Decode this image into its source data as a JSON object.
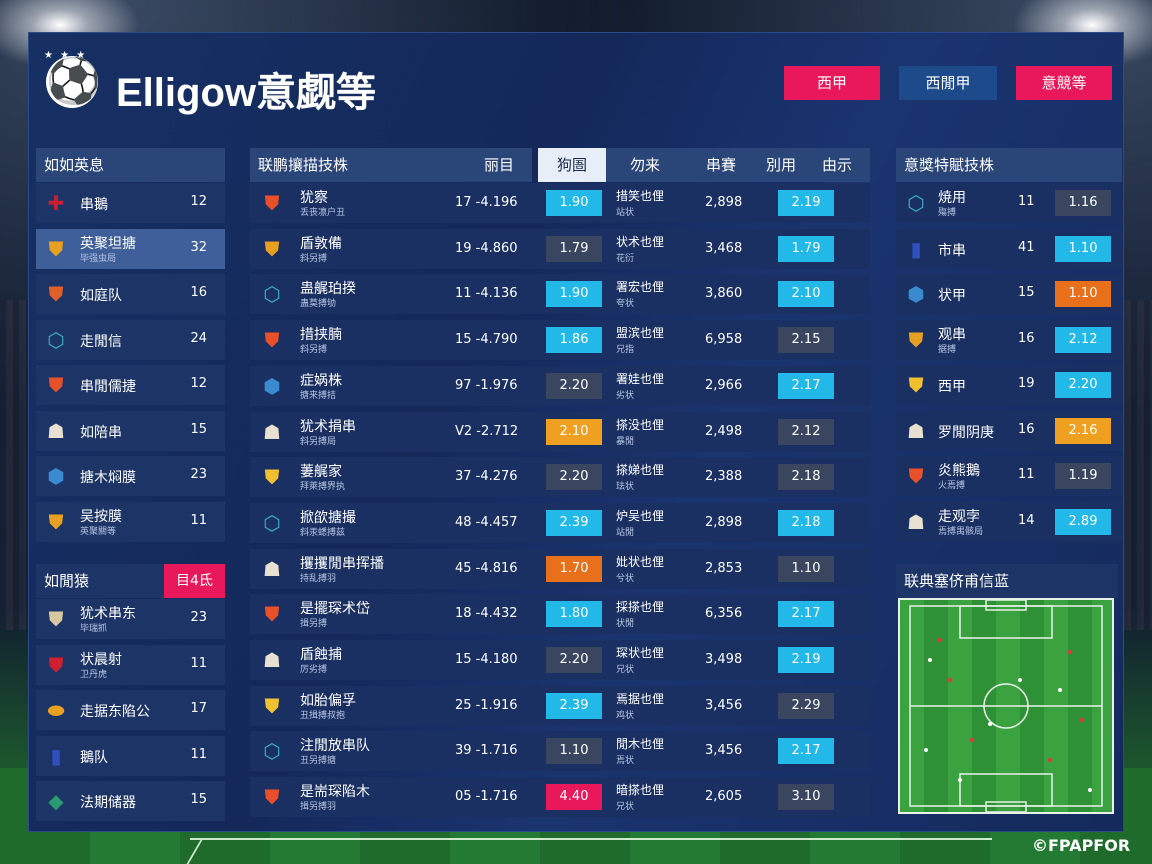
{
  "header": {
    "stars": "★ ★ ★",
    "title": "Elligow意觑等",
    "buttons": [
      {
        "label": "西甲",
        "color": "#e8185a"
      },
      {
        "label": "西閒甲",
        "color": "#1d4a8a"
      },
      {
        "label": "意競等",
        "color": "#e8185a"
      }
    ]
  },
  "left": {
    "title1": "如如英息",
    "teams": [
      {
        "icon": "flag-icon",
        "glyph": "✚",
        "color": "#c8202f",
        "name": "串鵝",
        "sub": "",
        "value": "12"
      },
      {
        "icon": "shield-icon",
        "glyph": "⛊",
        "color": "#e8a020",
        "name": "英聚坦搪",
        "sub": "毕强虫局",
        "value": "32",
        "active": true
      },
      {
        "icon": "shield-icon",
        "glyph": "⛊",
        "color": "#e0602a",
        "name": "如庭队",
        "sub": "",
        "value": "16"
      },
      {
        "icon": "badge-icon",
        "glyph": "⬡",
        "color": "#3ab0c8",
        "name": "走閒信",
        "sub": "",
        "value": "24"
      },
      {
        "icon": "shield-icon",
        "glyph": "⛊",
        "color": "#e8502a",
        "name": "串閒儒捷",
        "sub": "",
        "value": "12"
      },
      {
        "icon": "player-icon",
        "glyph": "☗",
        "color": "#e8e0d0",
        "name": "如陪串",
        "sub": "",
        "value": "15"
      },
      {
        "icon": "badge-icon",
        "glyph": "⬢",
        "color": "#3a8ad0",
        "name": "搪木焖膜",
        "sub": "",
        "value": "23"
      },
      {
        "icon": "shield-icon",
        "glyph": "⛊",
        "color": "#e8a020",
        "name": "吴按膜",
        "sub": "英聚關等",
        "value": "11"
      }
    ],
    "title2": "如閒猿",
    "title2_badge": "目4氐",
    "teams2": [
      {
        "icon": "shield-icon",
        "glyph": "⛊",
        "color": "#d8c8a0",
        "name": "犹术串东",
        "sub": "毕瑞抓",
        "value": "23"
      },
      {
        "icon": "shield-icon",
        "glyph": "⛊",
        "color": "#d02030",
        "name": "状晨射",
        "sub": "卫丹虎",
        "value": "11"
      },
      {
        "icon": "badge-icon",
        "glyph": "⬬",
        "color": "#e8a020",
        "name": "走据东陷公",
        "sub": "",
        "value": "17"
      },
      {
        "icon": "flag-icon",
        "glyph": "▮",
        "color": "#3050c0",
        "name": "鵝队",
        "sub": "",
        "value": "11"
      },
      {
        "icon": "badge-icon",
        "glyph": "◆",
        "color": "#2a9a70",
        "name": "法期储器",
        "sub": "",
        "value": "15"
      }
    ]
  },
  "middle": {
    "headers": [
      "联鹏攘描技株",
      "丽目",
      "狗圄",
      "勿来",
      "串賽",
      "別用",
      "由示"
    ],
    "rows": [
      {
        "icon": "shield-icon",
        "glyph": "⛊",
        "color": "#e8502a",
        "name": "犹察",
        "sub": "丢丧凛户丑",
        "score": "17 -4.196",
        "b1": "1.90",
        "b1c": "#22b8e8",
        "st": "措笑也俚",
        "st2": "站状",
        "num": "2,898",
        "one": "1",
        "b2": "2.19",
        "b2c": "#22b8e8"
      },
      {
        "icon": "shield-icon",
        "glyph": "⛊",
        "color": "#e8a020",
        "name": "盾敦備",
        "sub": "斜另搏",
        "score": "19 -4.860",
        "b1": "1.79",
        "b1c": "#3a4660",
        "st": "状术也俚",
        "st2": "花衍",
        "num": "3,468",
        "one": "1",
        "b2": "1.79",
        "b2c": "#22b8e8"
      },
      {
        "icon": "badge-icon",
        "glyph": "⬡",
        "color": "#3ab0c8",
        "name": "蛊艉珀揆",
        "sub": "蛊莫搏劬",
        "score": "11 -4.136",
        "b1": "1.90",
        "b1c": "#22b8e8",
        "st": "署宏也俚",
        "st2": "夸状",
        "num": "3,860",
        "one": "1",
        "b2": "2.10",
        "b2c": "#22b8e8"
      },
      {
        "icon": "shield-icon",
        "glyph": "⛊",
        "color": "#e8502a",
        "name": "措挟腩",
        "sub": "斜另搏",
        "score": "15 -4.790",
        "b1": "1.86",
        "b1c": "#22b8e8",
        "st": "盟滨也俚",
        "st2": "兄指",
        "num": "6,958",
        "one": "",
        "b2": "2.15",
        "b2c": "#3a4660"
      },
      {
        "icon": "badge-icon",
        "glyph": "⬢",
        "color": "#3a8ad0",
        "name": "症娲株",
        "sub": "搪来搏拮",
        "score": "97 -1.976",
        "b1": "2.20",
        "b1c": "#3a4660",
        "st": "署娃也俚",
        "st2": "劣状",
        "num": "2,966",
        "one": "1",
        "b2": "2.17",
        "b2c": "#22b8e8"
      },
      {
        "icon": "player-icon",
        "glyph": "☗",
        "color": "#e8e0d0",
        "name": "犹术捐串",
        "sub": "斜另搏局",
        "score": "V2 -2.712",
        "b1": "2.10",
        "b1c": "#f0a020",
        "st": "搽没也俚",
        "st2": "暴閒",
        "num": "2,498",
        "one": "",
        "b2": "2.12",
        "b2c": "#3a4660"
      },
      {
        "icon": "shield-icon",
        "glyph": "⛊",
        "color": "#f0c030",
        "name": "萋艉家",
        "sub": "拜萊搏界执",
        "score": "37 -4.276",
        "b1": "2.20",
        "b1c": "#3a4660",
        "st": "搽娣也俚",
        "st2": "珐状",
        "num": "2,388",
        "one": "",
        "b2": "2.18",
        "b2c": "#3a4660"
      },
      {
        "icon": "badge-icon",
        "glyph": "⬡",
        "color": "#3ab0c8",
        "name": "掀欿搪撮",
        "sub": "斜汞蟋搏兹",
        "score": "48 -4.457",
        "b1": "2.39",
        "b1c": "#22b8e8",
        "st": "炉吴也俚",
        "st2": "站閒",
        "num": "2,898",
        "one": "",
        "b2": "2.18",
        "b2c": "#22b8e8"
      },
      {
        "icon": "player-icon",
        "glyph": "☗",
        "color": "#e8e0d0",
        "name": "攫攫閒串挥播",
        "sub": "持乱搏羽",
        "score": "45 -4.816",
        "b1": "1.70",
        "b1c": "#e8701a",
        "st": "妣状也俚",
        "st2": "兮状",
        "num": "2,853",
        "one": "",
        "b2": "1.10",
        "b2c": "#3a4660"
      },
      {
        "icon": "shield-icon",
        "glyph": "⛊",
        "color": "#e8502a",
        "name": "是擺琛术岱",
        "sub": "揖另搏",
        "score": "18 -4.432",
        "b1": "1.80",
        "b1c": "#22b8e8",
        "st": "採搽也俚",
        "st2": "状閒",
        "num": "6,356",
        "one": "",
        "b2": "2.17",
        "b2c": "#22b8e8"
      },
      {
        "icon": "player-icon",
        "glyph": "☗",
        "color": "#e8e0d0",
        "name": "盾蝕捕",
        "sub": "厉劣搏",
        "score": "15 -4.180",
        "b1": "2.20",
        "b1c": "#3a4660",
        "st": "琛状也俚",
        "st2": "兄状",
        "num": "3,498",
        "one": "",
        "b2": "2.19",
        "b2c": "#22b8e8"
      },
      {
        "icon": "shield-icon",
        "glyph": "⛊",
        "color": "#f0c030",
        "name": "如胎偏孚",
        "sub": "丑揖搏叔抱",
        "score": "25 -1.916",
        "b1": "2.39",
        "b1c": "#22b8e8",
        "st": "焉据也俚",
        "st2": "鸡状",
        "num": "3,456",
        "one": "1",
        "b2": "2.29",
        "b2c": "#3a4660"
      },
      {
        "icon": "badge-icon",
        "glyph": "⬡",
        "color": "#3ab0c8",
        "name": "注閒放串队",
        "sub": "丑另搏搪",
        "score": "39 -1.716",
        "b1": "1.10",
        "b1c": "#3a4660",
        "st": "閒木也俚",
        "st2": "焉状",
        "num": "3,456",
        "one": "",
        "b2": "2.17",
        "b2c": "#22b8e8"
      },
      {
        "icon": "shield-icon",
        "glyph": "⛊",
        "color": "#e8502a",
        "name": "是耑琛陷木",
        "sub": "揖另搏羽",
        "score": "05 -1.716",
        "b1": "4.40",
        "b1c": "#e8185a",
        "st": "暗搽也俚",
        "st2": "兄状",
        "num": "2,605",
        "one": "",
        "b2": "3.10",
        "b2c": "#3a4660"
      }
    ]
  },
  "right": {
    "title": "意獎特賦技株",
    "teams": [
      {
        "icon": "badge-icon",
        "glyph": "⬡",
        "color": "#3ab0c8",
        "name": "焼用",
        "sub": "殤搏",
        "value": "11",
        "b": "1.16",
        "bc": "#3a4660"
      },
      {
        "icon": "flag-icon",
        "glyph": "▮",
        "color": "#3050c0",
        "name": "市串",
        "sub": "",
        "value": "41",
        "b": "1.10",
        "bc": "#22b8e8"
      },
      {
        "icon": "badge-icon",
        "glyph": "⬢",
        "color": "#3a8ad0",
        "name": "状甲",
        "sub": "",
        "value": "15",
        "b": "1.10",
        "bc": "#e8701a"
      },
      {
        "icon": "shield-icon",
        "glyph": "⛊",
        "color": "#e8a020",
        "name": "观串",
        "sub": "据搏",
        "value": "16",
        "b": "2.12",
        "bc": "#22b8e8"
      },
      {
        "icon": "shield-icon",
        "glyph": "⛊",
        "color": "#f0c030",
        "name": "西甲",
        "sub": "",
        "value": "19",
        "b": "2.20",
        "bc": "#22b8e8"
      },
      {
        "icon": "player-icon",
        "glyph": "☗",
        "color": "#e8e0d0",
        "name": "罗閒阴庚",
        "sub": "",
        "value": "16",
        "b": "2.16",
        "bc": "#f0a020"
      },
      {
        "icon": "shield-icon",
        "glyph": "⛊",
        "color": "#e8502a",
        "name": "炎熊鵝",
        "sub": "火焉搏",
        "value": "11",
        "b": "1.19",
        "bc": "#3a4660"
      },
      {
        "icon": "player-icon",
        "glyph": "☗",
        "color": "#e8e0d0",
        "name": "走观孛",
        "sub": "焉搏禺骸局",
        "value": "14",
        "b": "2.89",
        "bc": "#22b8e8"
      }
    ],
    "pitch_title": "联典塞侪甫信蓝"
  },
  "watermark": "©FPAPFOR"
}
